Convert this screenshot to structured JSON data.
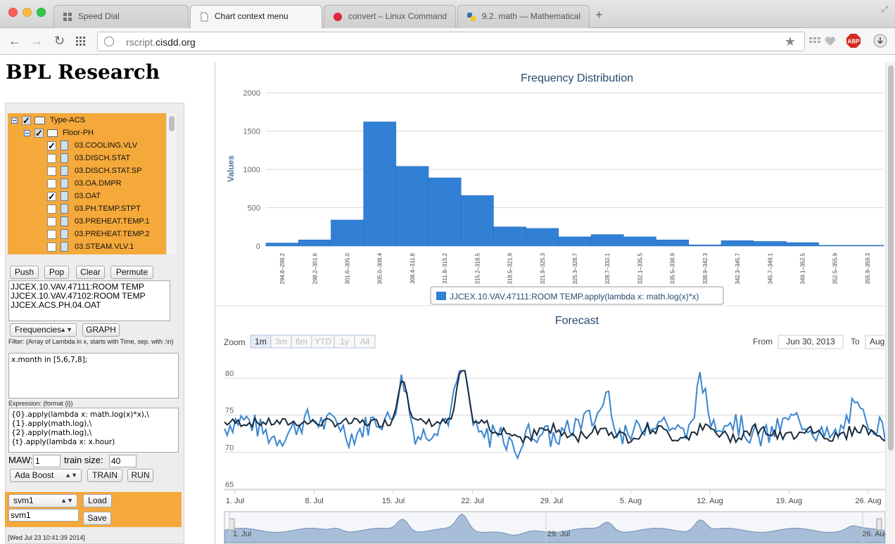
{
  "browser": {
    "tabs": [
      {
        "label": "Speed Dial",
        "icon": "speed-dial-icon"
      },
      {
        "label": "Chart context menu",
        "icon": "page-icon"
      },
      {
        "label": "convert – Linux Command",
        "icon": "red-dot-icon"
      },
      {
        "label": "9.2. math — Mathematical",
        "icon": "python-icon"
      }
    ],
    "url_prefix": "rscript.",
    "url_domain": "cisdd.org",
    "abp_label": "ABP"
  },
  "page": {
    "title": "BPL Research"
  },
  "tree": {
    "root": "Type-ACS",
    "folder": "Floor-PH",
    "items": [
      {
        "label": "03.COOLING.VLV",
        "checked": true
      },
      {
        "label": "03.DISCH.STAT",
        "checked": false
      },
      {
        "label": "03.DISCH.STAT.SP",
        "checked": false
      },
      {
        "label": "03.OA.DMPR",
        "checked": false
      },
      {
        "label": "03.OAT",
        "checked": true
      },
      {
        "label": "03.PH.TEMP.STPT",
        "checked": false
      },
      {
        "label": "03.PREHEAT.TEMP.1",
        "checked": false
      },
      {
        "label": "03.PREHEAT.TEMP.2",
        "checked": false
      },
      {
        "label": "03.STEAM.VLV.1",
        "checked": false
      }
    ]
  },
  "controls": {
    "push": "Push",
    "pop": "Pop",
    "clear": "Clear",
    "permute": "Permute",
    "list": [
      "JJCEX.10.VAV.47111:ROOM TEMP",
      "JJCEX.10.VAV.47102:ROOM TEMP",
      "JJCEX.ACS.PH.04.OAT"
    ],
    "mode_select": "Frequencies",
    "graph": "GRAPH",
    "filter_label": "Filter: (Array of Lambda in x, starts with Time, sep. with ;\\n)",
    "filter_value": "x.month in [5,6,7,8];",
    "expression_label": "Expression: (format {i})",
    "expression_value": "{0}.apply(lambda x: math.log(x)*x),\\\n{1}.apply(math.log),\\\n{2}.apply(math.log),\\\n{t}.apply(lambda x: x.hour)",
    "maw_label": "MAW:",
    "maw_value": "1",
    "train_size_label": "train size:",
    "train_size_value": "40",
    "model_select": "Ada Boost",
    "train": "TRAIN",
    "run": "RUN",
    "saved_select": "svm1",
    "load": "Load",
    "name_value": "svm1",
    "save": "Save",
    "log_line1": "[Wed Jul 23 10:41:39 2014]"
  },
  "colors": {
    "accent_orange": "#f5a93b",
    "bar_blue": "#3180d6",
    "line_light": "#3a86d0",
    "line_dark": "#1a2b3c"
  },
  "chart_data": [
    {
      "type": "bar",
      "title": "Frequency Distribution",
      "ylabel": "Values",
      "ylim": [
        0,
        2000
      ],
      "yticks": [
        "2000",
        "1500",
        "1000",
        "500",
        "0"
      ],
      "categories": [
        "294.8–298.2",
        "298.2–301.6",
        "301.6–305.0",
        "305.0–308.4",
        "308.4–311.8",
        "311.8–315.2",
        "315.2–318.5",
        "318.5–321.9",
        "321.9–325.3",
        "325.3–328.7",
        "328.7–332.1",
        "332.1–335.5",
        "335.5–338.9",
        "338.9–342.3",
        "342.3–345.7",
        "345.7–349.1",
        "349.1–352.5",
        "352.5–355.9",
        "355.9–359.3"
      ],
      "values": [
        40,
        80,
        340,
        1620,
        1040,
        890,
        660,
        250,
        230,
        120,
        150,
        120,
        80,
        15,
        70,
        60,
        45,
        10,
        10
      ],
      "legend": "JJCEX.10.VAV.47111:ROOM TEMP.apply(lambda x: math.log(x)*x)"
    },
    {
      "type": "line",
      "title": "Forecast",
      "zoom_label": "Zoom",
      "zoom_options": [
        "1m",
        "3m",
        "6m",
        "YTD",
        "1y",
        "All"
      ],
      "from_label": "From",
      "from_value": "Jun 30, 2013",
      "to_label": "To",
      "to_value": "Aug",
      "ylim": [
        65,
        80
      ],
      "yticks": [
        "80",
        "75",
        "70",
        "65"
      ],
      "xticks": [
        "1. Jul",
        "8. Jul",
        "15. Jul",
        "22. Jul",
        "29. Jul",
        "5. Aug",
        "12. Aug",
        "19. Aug",
        "26. Aug"
      ],
      "navigator_ticks": [
        "1. Jul",
        "29. Jul",
        "26. Aug"
      ]
    }
  ]
}
